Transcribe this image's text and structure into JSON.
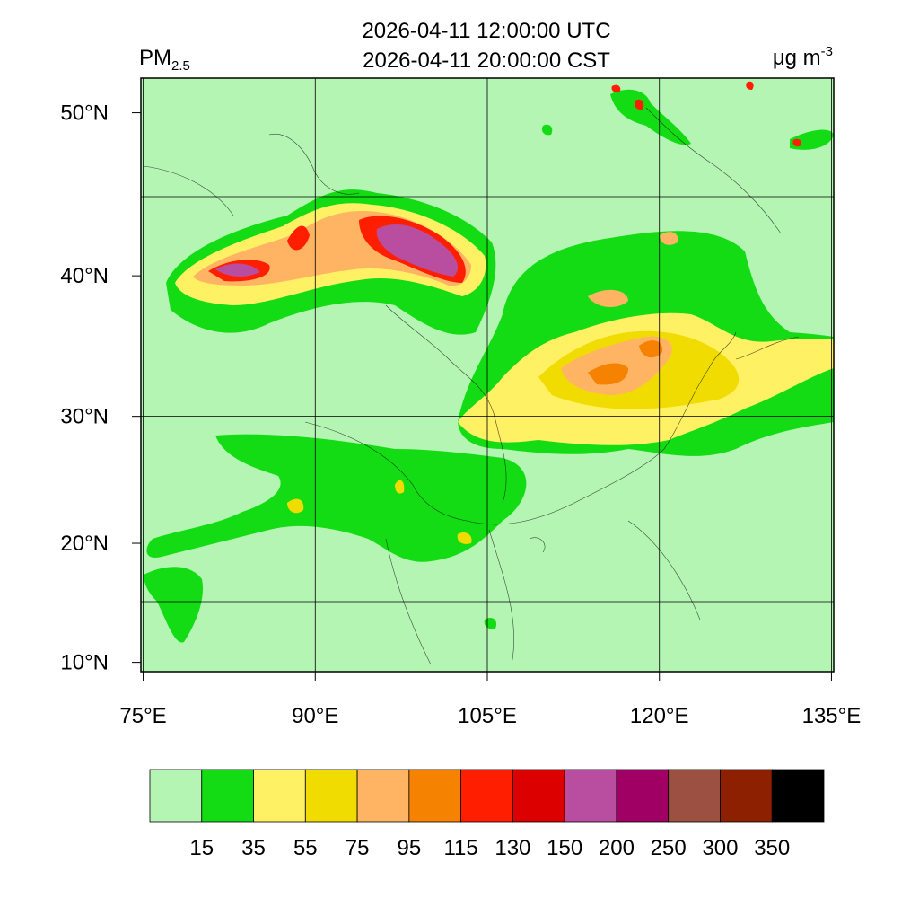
{
  "title_lines": [
    "2026-04-11 12:00:00 UTC",
    "2026-04-11 20:00:00 CST"
  ],
  "variable": {
    "label": "PM",
    "subscript": "2.5"
  },
  "units": {
    "label": "μg m",
    "superscript": "-3"
  },
  "map": {
    "xlim": [
      74.8,
      135.2
    ],
    "ylim": [
      9.2,
      51.9
    ],
    "xticks": [
      {
        "value": 75,
        "label": "75°E"
      },
      {
        "value": 90,
        "label": "90°E"
      },
      {
        "value": 105,
        "label": "105°E"
      },
      {
        "value": 120,
        "label": "120°E"
      },
      {
        "value": 135,
        "label": "135°E"
      }
    ],
    "yticks": [
      {
        "value": 10,
        "label": "10°N"
      },
      {
        "value": 20,
        "label": "20°N"
      },
      {
        "value": 30,
        "label": "30°N"
      },
      {
        "value": 40,
        "label": "40°N"
      },
      {
        "value": 50,
        "label": "50°N"
      }
    ]
  },
  "colorbar": {
    "levels": [
      15,
      35,
      55,
      75,
      95,
      115,
      130,
      150,
      200,
      250,
      300,
      350
    ],
    "colors": [
      "#b4f5b4",
      "#14dc14",
      "#fff064",
      "#f0dc00",
      "#ffb464",
      "#f58200",
      "#ff1e00",
      "#dc0000",
      "#b94ea0",
      "#a00064",
      "#9b5041",
      "#8c2000",
      "#000000"
    ]
  }
}
